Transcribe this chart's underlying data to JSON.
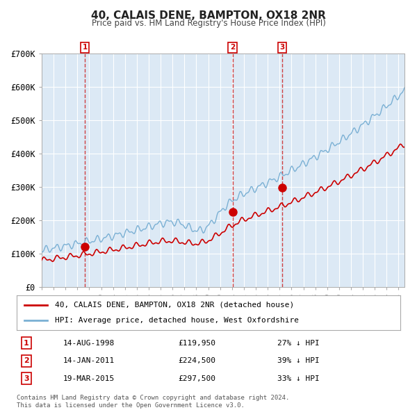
{
  "title": "40, CALAIS DENE, BAMPTON, OX18 2NR",
  "subtitle": "Price paid vs. HM Land Registry's House Price Index (HPI)",
  "background_color": "#dce9f5",
  "plot_bg_color": "#dce9f5",
  "y_label_color": "#333333",
  "grid_color": "#ffffff",
  "hpi_line_color": "#7ab0d4",
  "price_line_color": "#cc0000",
  "purchase_marker_color": "#cc0000",
  "vline_color": "#cc2222",
  "purchases": [
    {
      "date_num": 1998.62,
      "price": 119950,
      "label": "1",
      "pct": "27%"
    },
    {
      "date_num": 2011.04,
      "price": 224500,
      "label": "2",
      "pct": "39%"
    },
    {
      "date_num": 2015.21,
      "price": 297500,
      "label": "3",
      "pct": "33%"
    }
  ],
  "purchase_dates_str": [
    "14-AUG-1998",
    "14-JAN-2011",
    "19-MAR-2015"
  ],
  "purchase_prices_str": [
    "£119,950",
    "£224,500",
    "£297,500"
  ],
  "purchase_pcts": [
    "27% ↓ HPI",
    "39% ↓ HPI",
    "33% ↓ HPI"
  ],
  "ylim": [
    0,
    700000
  ],
  "yticks": [
    0,
    100000,
    200000,
    300000,
    400000,
    500000,
    600000,
    700000
  ],
  "ytick_labels": [
    "£0",
    "£100K",
    "£200K",
    "£300K",
    "£400K",
    "£500K",
    "£600K",
    "£700K"
  ],
  "xlim_start": 1995.0,
  "xlim_end": 2025.5,
  "footer_line1": "Contains HM Land Registry data © Crown copyright and database right 2024.",
  "footer_line2": "This data is licensed under the Open Government Licence v3.0.",
  "legend_label_red": "40, CALAIS DENE, BAMPTON, OX18 2NR (detached house)",
  "legend_label_blue": "HPI: Average price, detached house, West Oxfordshire"
}
